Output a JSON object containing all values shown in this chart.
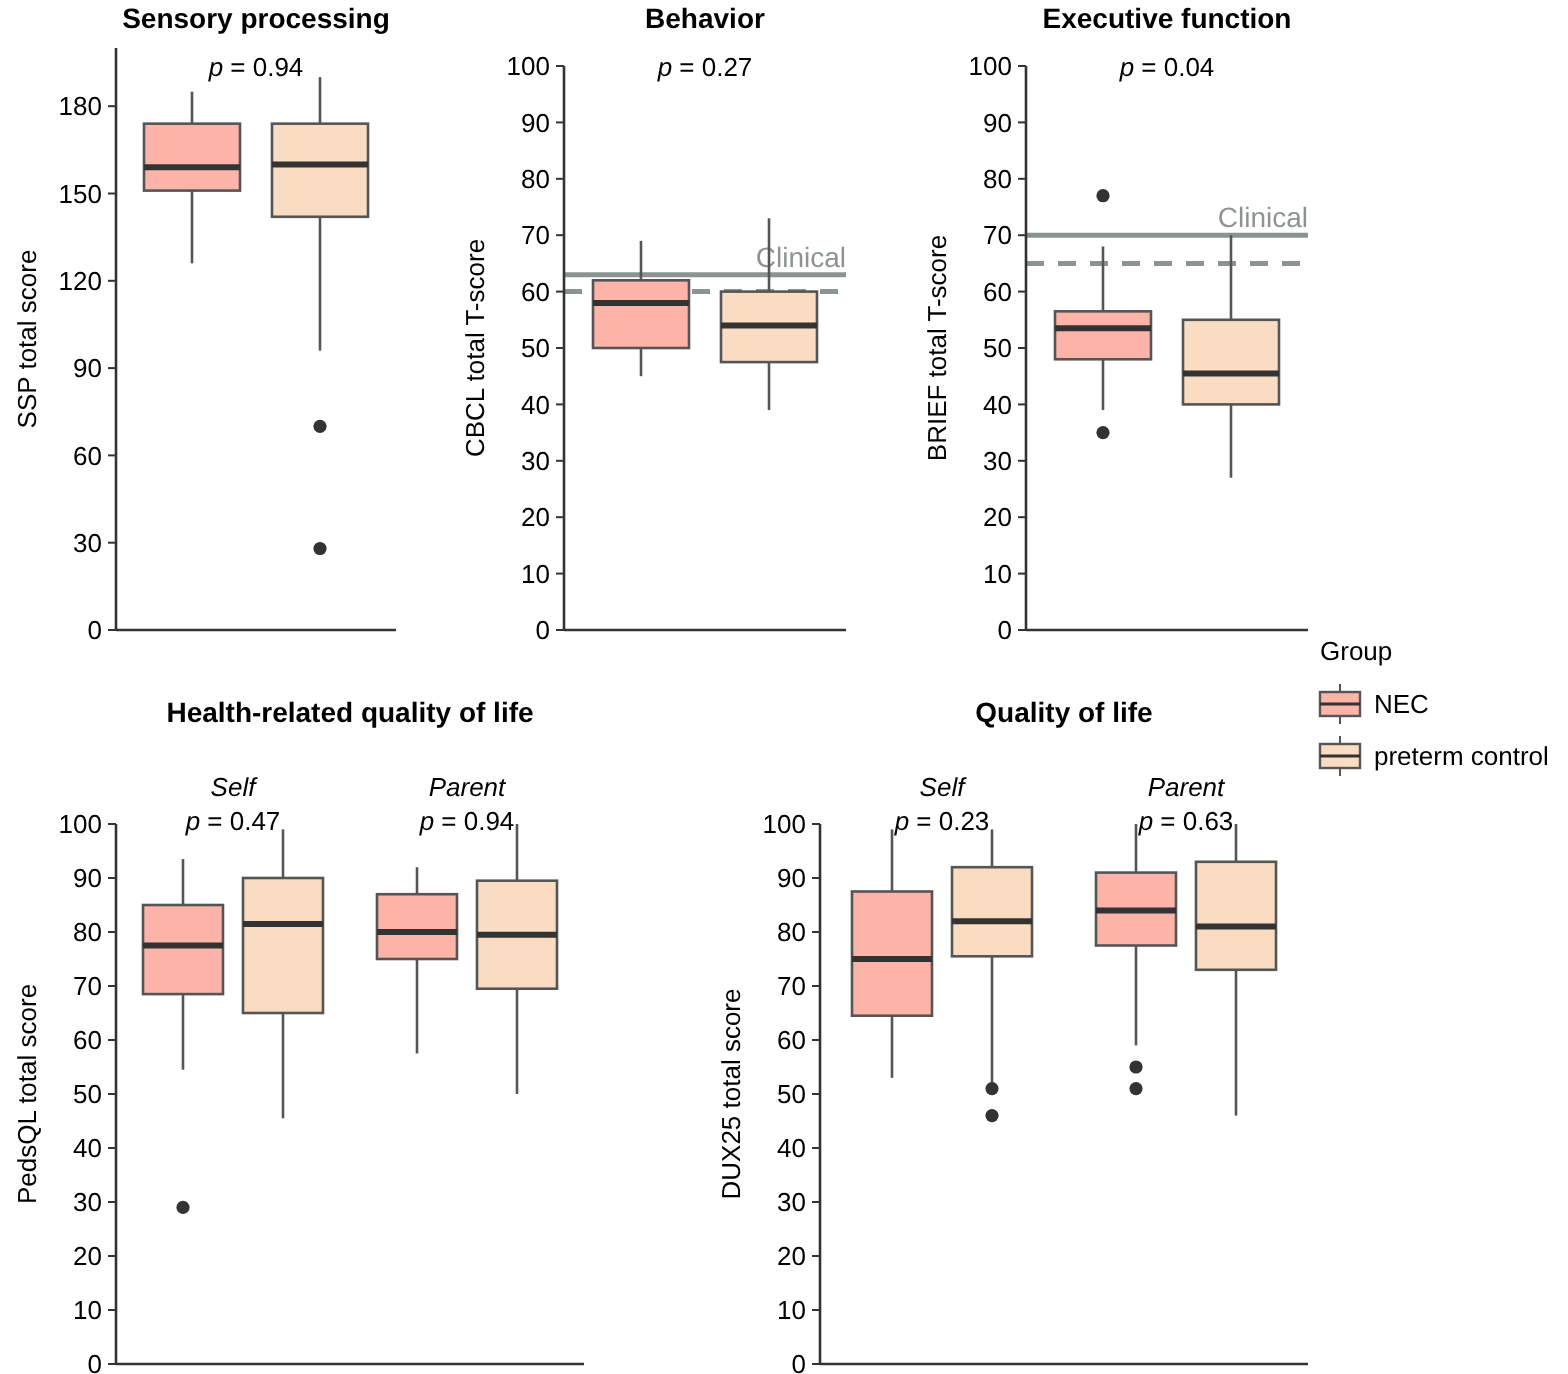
{
  "chart_data": [
    {
      "type": "box",
      "title": "Sensory processing",
      "ylabel": "SSP total score",
      "categories": [
        null
      ],
      "ylim": [
        0,
        200
      ],
      "yticks": [
        0,
        30,
        60,
        90,
        120,
        150,
        180
      ],
      "legend": false,
      "annotations": [
        "p = 0.94"
      ],
      "series": [
        {
          "color": "#fcb3a8",
          "boxes": [
            {
              "low": 126,
              "q1": 151,
              "median": 159,
              "q3": 174,
              "high": 185
            }
          ]
        },
        {
          "color": "#f9dcc2",
          "boxes": [
            {
              "low": 96,
              "q1": 142,
              "median": 160,
              "q3": 174,
              "high": 190,
              "outliers": [
                70,
                28
              ]
            }
          ]
        }
      ]
    },
    {
      "type": "box",
      "title": "Behavior",
      "ylabel": "CBCL total T-score",
      "categories": [
        null
      ],
      "ylim": [
        0,
        100
      ],
      "yticks": [
        0,
        10,
        20,
        30,
        40,
        50,
        60,
        70,
        80,
        90,
        100
      ],
      "legend": false,
      "annotations": [
        "p = 0.27"
      ],
      "ref_lines": [
        {
          "axis": "y",
          "value": 63,
          "label": "Clinical",
          "color": "#8c9491",
          "line_style": "solid"
        },
        {
          "axis": "y",
          "value": 60,
          "color": "#8c9491",
          "line_style": "dashed"
        }
      ],
      "series": [
        {
          "color": "#fcb3a8",
          "boxes": [
            {
              "low": 45,
              "q1": 50,
              "median": 58,
              "q3": 62,
              "high": 69
            }
          ]
        },
        {
          "color": "#f9dcc2",
          "boxes": [
            {
              "low": 39,
              "q1": 47.5,
              "median": 54,
              "q3": 60,
              "high": 73
            }
          ]
        }
      ]
    },
    {
      "type": "box",
      "title": "Executive function",
      "ylabel": "BRIEF total T-score",
      "categories": [
        null
      ],
      "ylim": [
        0,
        100
      ],
      "yticks": [
        0,
        10,
        20,
        30,
        40,
        50,
        60,
        70,
        80,
        90,
        100
      ],
      "legend": false,
      "annotations": [
        "p = 0.04"
      ],
      "ref_lines": [
        {
          "axis": "y",
          "value": 70,
          "label": "Clinical",
          "color": "#8c9491",
          "line_style": "solid"
        },
        {
          "axis": "y",
          "value": 65,
          "color": "#8c9491",
          "line_style": "dashed"
        }
      ],
      "series": [
        {
          "color": "#fcb3a8",
          "boxes": [
            {
              "low": 39,
              "q1": 48,
              "median": 53.5,
              "q3": 56.5,
              "high": 68,
              "outliers": [
                77,
                35
              ]
            }
          ]
        },
        {
          "color": "#f9dcc2",
          "boxes": [
            {
              "low": 27,
              "q1": 40,
              "median": 45.5,
              "q3": 55,
              "high": 70
            }
          ]
        }
      ]
    },
    {
      "type": "box",
      "title": "Health-related quality of life",
      "ylabel": "PedsQL total score",
      "categories": [
        "Self",
        "Parent"
      ],
      "ylim": [
        0,
        100
      ],
      "yticks": [
        0,
        10,
        20,
        30,
        40,
        50,
        60,
        70,
        80,
        90,
        100
      ],
      "legend": false,
      "annotations": [
        "p = 0.47",
        "p = 0.94"
      ],
      "series": [
        {
          "color": "#fcb3a8",
          "boxes": [
            {
              "low": 54.5,
              "q1": 68.5,
              "median": 77.5,
              "q3": 85,
              "high": 93.5,
              "outliers": [
                29
              ]
            },
            {
              "low": 57.5,
              "q1": 75,
              "median": 80,
              "q3": 87,
              "high": 92
            }
          ]
        },
        {
          "color": "#f9dcc2",
          "boxes": [
            {
              "low": 45.5,
              "q1": 65,
              "median": 81.5,
              "q3": 90,
              "high": 99
            },
            {
              "low": 50,
              "q1": 69.5,
              "median": 79.5,
              "q3": 89.5,
              "high": 100
            }
          ]
        }
      ]
    },
    {
      "type": "box",
      "title": "Quality of life",
      "ylabel": "DUX25 total score",
      "categories": [
        "Self",
        "Parent"
      ],
      "ylim": [
        0,
        100
      ],
      "yticks": [
        0,
        10,
        20,
        30,
        40,
        50,
        60,
        70,
        80,
        90,
        100
      ],
      "legend": "top right",
      "legend_title": "Group",
      "annotations": [
        "p = 0.23",
        "p = 0.63"
      ],
      "series": [
        {
          "name": "NEC",
          "color": "#fcb3a8",
          "boxes": [
            {
              "low": 53,
              "q1": 64.5,
              "median": 75,
              "q3": 87.5,
              "high": 99
            },
            {
              "low": 59,
              "q1": 77.5,
              "median": 84,
              "q3": 91,
              "high": 100,
              "outliers": [
                55,
                51
              ]
            }
          ]
        },
        {
          "name": "preterm control",
          "color": "#f9dcc2",
          "boxes": [
            {
              "low": 52,
              "q1": 75.5,
              "median": 82,
              "q3": 92,
              "high": 99,
              "outliers": [
                51,
                46
              ]
            },
            {
              "low": 46,
              "q1": 73,
              "median": 81,
              "q3": 93,
              "high": 100
            }
          ]
        }
      ]
    }
  ]
}
